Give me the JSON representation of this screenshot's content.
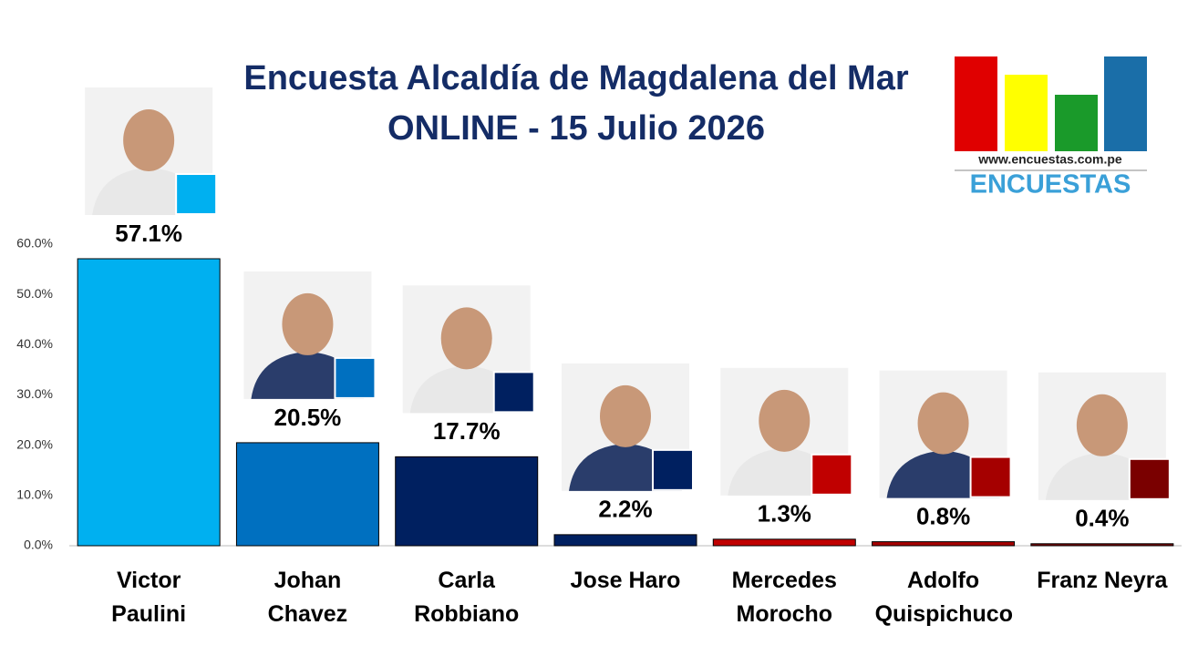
{
  "chart_data": {
    "type": "bar",
    "title": "Encuesta Alcaldía de Magdalena del Mar",
    "subtitle": "ONLINE - 15 Julio 2026",
    "categories": [
      "Victor Paulini",
      "Johan Chavez",
      "Carla Robbiano",
      "Jose Haro",
      "Mercedes Morocho",
      "Adolfo Quispichuco",
      "Franz Neyra"
    ],
    "values": [
      57.1,
      20.5,
      17.7,
      2.2,
      1.3,
      0.8,
      0.4
    ],
    "value_labels": [
      "57.1%",
      "20.5%",
      "17.7%",
      "2.2%",
      "1.3%",
      "0.8%",
      "0.4%"
    ],
    "colors": [
      "#00b0f0",
      "#0070c0",
      "#002060",
      "#002060",
      "#c00000",
      "#a50000",
      "#7a0000"
    ],
    "ylim": [
      0,
      60
    ],
    "yticks": [
      {
        "value": 0,
        "label": "0.0%"
      },
      {
        "value": 10,
        "label": "10.0%"
      },
      {
        "value": 20,
        "label": "20.0%"
      },
      {
        "value": 30,
        "label": "30.0%"
      },
      {
        "value": 40,
        "label": "40.0%"
      },
      {
        "value": 50,
        "label": "50.0%"
      },
      {
        "value": 60,
        "label": "60.0%"
      }
    ],
    "grid": false
  },
  "logo": {
    "url": "www.encuestas.com.pe",
    "name": "ENCUESTAS"
  }
}
